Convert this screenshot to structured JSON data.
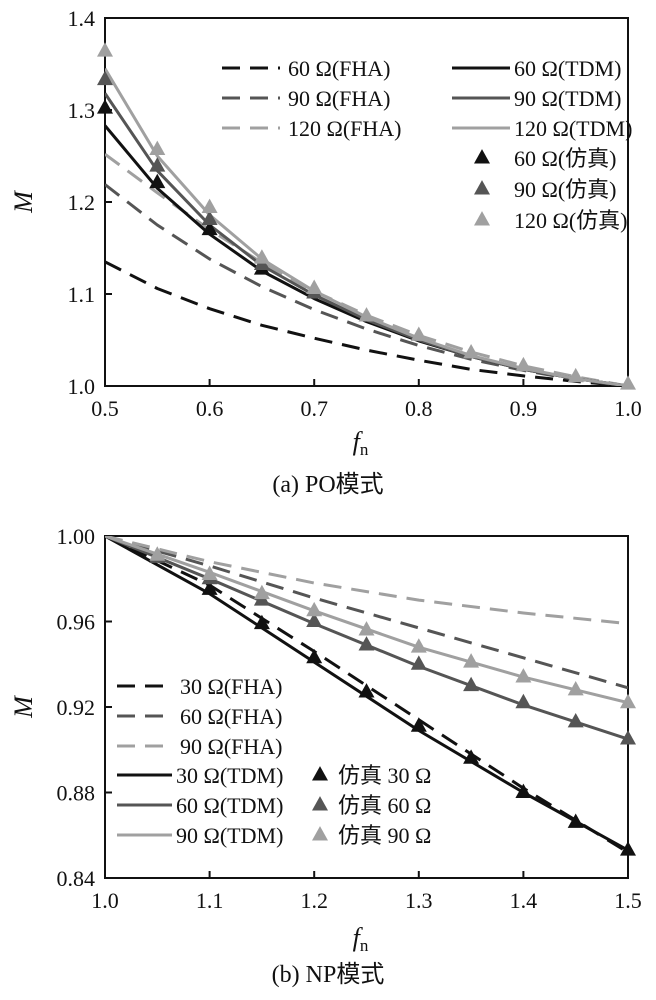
{
  "chart_data": [
    {
      "id": "po",
      "type": "line",
      "caption": "(a)  PO模式",
      "ylabel": "M",
      "xlabel_main": "f",
      "xlabel_sub": "n",
      "xlim": [
        0.5,
        1.0
      ],
      "ylim": [
        1.0,
        1.4
      ],
      "xticks": [
        0.5,
        0.6,
        0.7,
        0.8,
        0.9,
        1.0
      ],
      "xtick_labels": [
        "0.5",
        "0.6",
        "0.7",
        "0.8",
        "0.9",
        "1.0"
      ],
      "yticks": [
        1.0,
        1.1,
        1.2,
        1.3,
        1.4
      ],
      "ytick_labels": [
        "1.0",
        "1.1",
        "1.2",
        "1.3",
        "1.4"
      ],
      "legend_position": "top-right",
      "series": [
        {
          "name": "60 Ω(FHA)",
          "kind": "line",
          "dash": "dashed",
          "color": "#111111",
          "x": [
            0.5,
            0.55,
            0.6,
            0.65,
            0.7,
            0.75,
            0.8,
            0.85,
            0.9,
            0.95,
            1.0
          ],
          "y": [
            1.135,
            1.106,
            1.084,
            1.066,
            1.052,
            1.039,
            1.028,
            1.018,
            1.011,
            1.005,
            1.0
          ]
        },
        {
          "name": "90 Ω(FHA)",
          "kind": "line",
          "dash": "dashed",
          "color": "#555555",
          "x": [
            0.5,
            0.55,
            0.6,
            0.65,
            0.7,
            0.75,
            0.8,
            0.85,
            0.9,
            0.95,
            1.0
          ],
          "y": [
            1.219,
            1.175,
            1.138,
            1.108,
            1.083,
            1.062,
            1.044,
            1.029,
            1.017,
            1.007,
            1.0
          ]
        },
        {
          "name": "120 Ω(FHA)",
          "kind": "line",
          "dash": "dashed",
          "color": "#a0a0a0",
          "x": [
            0.5,
            0.55,
            0.6,
            0.65,
            0.7,
            0.75,
            0.8,
            0.85,
            0.9,
            0.95,
            1.0
          ],
          "y": [
            1.252,
            1.21,
            1.17,
            1.134,
            1.103,
            1.077,
            1.055,
            1.037,
            1.022,
            1.01,
            1.0
          ]
        },
        {
          "name": "60 Ω(TDM)",
          "kind": "line",
          "dash": "solid",
          "color": "#111111",
          "x": [
            0.5,
            0.55,
            0.6,
            0.65,
            0.7,
            0.75,
            0.8,
            0.85,
            0.9,
            0.95,
            1.0
          ],
          "y": [
            1.283,
            1.215,
            1.165,
            1.125,
            1.095,
            1.07,
            1.049,
            1.032,
            1.018,
            1.008,
            1.0
          ]
        },
        {
          "name": "90 Ω(TDM)",
          "kind": "line",
          "dash": "solid",
          "color": "#555555",
          "x": [
            0.5,
            0.55,
            0.6,
            0.65,
            0.7,
            0.75,
            0.8,
            0.85,
            0.9,
            0.95,
            1.0
          ],
          "y": [
            1.318,
            1.234,
            1.175,
            1.131,
            1.099,
            1.072,
            1.05,
            1.032,
            1.018,
            1.008,
            1.0
          ]
        },
        {
          "name": "120 Ω(TDM)",
          "kind": "line",
          "dash": "solid",
          "color": "#a0a0a0",
          "x": [
            0.5,
            0.55,
            0.6,
            0.65,
            0.7,
            0.75,
            0.8,
            0.85,
            0.9,
            0.95,
            1.0
          ],
          "y": [
            1.345,
            1.25,
            1.186,
            1.138,
            1.103,
            1.075,
            1.052,
            1.033,
            1.019,
            1.008,
            1.0
          ]
        },
        {
          "name": "60 Ω(仿真)",
          "kind": "marker",
          "color": "#111111",
          "x": [
            0.5,
            0.55,
            0.6,
            0.65
          ],
          "y": [
            1.302,
            1.221,
            1.17,
            1.127
          ]
        },
        {
          "name": "90 Ω(仿真)",
          "kind": "marker",
          "color": "#555555",
          "x": [
            0.5,
            0.55,
            0.6,
            0.65,
            0.7
          ],
          "y": [
            1.333,
            1.239,
            1.181,
            1.132,
            1.101
          ]
        },
        {
          "name": "120 Ω(仿真)",
          "kind": "marker",
          "color": "#a0a0a0",
          "x": [
            0.5,
            0.55,
            0.6,
            0.65,
            0.7,
            0.75,
            0.8,
            0.85,
            0.9,
            0.95,
            1.0
          ],
          "y": [
            1.364,
            1.257,
            1.194,
            1.139,
            1.106,
            1.076,
            1.055,
            1.036,
            1.022,
            1.01,
            1.002
          ]
        }
      ],
      "legend_rows": [
        {
          "left": "60 Ω(FHA)",
          "right": "60 Ω(TDM)",
          "color": "#111111"
        },
        {
          "left": "90 Ω(FHA)",
          "right": "90 Ω(TDM)",
          "color": "#555555"
        },
        {
          "left": "120 Ω(FHA)",
          "right": "120 Ω(TDM)",
          "color": "#a0a0a0"
        }
      ],
      "legend_markers": [
        {
          "label": "60 Ω(仿真)",
          "color": "#111111"
        },
        {
          "label": "90 Ω(仿真)",
          "color": "#555555"
        },
        {
          "label": "120 Ω(仿真)",
          "color": "#a0a0a0"
        }
      ]
    },
    {
      "id": "np",
      "type": "line",
      "caption": "(b)  NP模式",
      "ylabel": "M",
      "xlabel_main": "f",
      "xlabel_sub": "n",
      "xlim": [
        1.0,
        1.5
      ],
      "ylim": [
        0.84,
        1.0
      ],
      "xticks": [
        1.0,
        1.1,
        1.2,
        1.3,
        1.4,
        1.5
      ],
      "xtick_labels": [
        "1.0",
        "1.1",
        "1.2",
        "1.3",
        "1.4",
        "1.5"
      ],
      "yticks": [
        0.84,
        0.88,
        0.92,
        0.96,
        1.0
      ],
      "ytick_labels": [
        "0.84",
        "0.88",
        "0.92",
        "0.96",
        "1.00"
      ],
      "legend_position": "bottom-left",
      "series": [
        {
          "name": "30 Ω(FHA)",
          "kind": "line",
          "dash": "dashed",
          "color": "#111111",
          "x": [
            1.0,
            1.1,
            1.2,
            1.3,
            1.4,
            1.5
          ],
          "y": [
            1.0,
            0.977,
            0.946,
            0.914,
            0.882,
            0.852
          ]
        },
        {
          "name": "60 Ω(FHA)",
          "kind": "line",
          "dash": "dashed",
          "color": "#555555",
          "x": [
            1.0,
            1.1,
            1.2,
            1.3,
            1.4,
            1.5
          ],
          "y": [
            1.0,
            0.986,
            0.971,
            0.957,
            0.943,
            0.929
          ]
        },
        {
          "name": "90 Ω(FHA)",
          "kind": "line",
          "dash": "dashed",
          "color": "#a0a0a0",
          "x": [
            1.0,
            1.1,
            1.2,
            1.3,
            1.4,
            1.5
          ],
          "y": [
            1.0,
            0.988,
            0.978,
            0.97,
            0.964,
            0.959
          ]
        },
        {
          "name": "30 Ω(TDM)",
          "kind": "line",
          "dash": "solid",
          "color": "#111111",
          "x": [
            1.0,
            1.1,
            1.2,
            1.3,
            1.4,
            1.5
          ],
          "y": [
            1.0,
            0.973,
            0.941,
            0.909,
            0.88,
            0.853
          ]
        },
        {
          "name": "60 Ω(TDM)",
          "kind": "line",
          "dash": "solid",
          "color": "#555555",
          "x": [
            1.0,
            1.1,
            1.2,
            1.3,
            1.4,
            1.5
          ],
          "y": [
            1.0,
            0.98,
            0.959,
            0.939,
            0.921,
            0.905
          ]
        },
        {
          "name": "90 Ω(TDM)",
          "kind": "line",
          "dash": "solid",
          "color": "#a0a0a0",
          "x": [
            1.0,
            1.1,
            1.2,
            1.3,
            1.4,
            1.5
          ],
          "y": [
            1.0,
            0.983,
            0.965,
            0.948,
            0.934,
            0.922
          ]
        },
        {
          "name": "仿真 30 Ω",
          "kind": "marker",
          "color": "#111111",
          "x": [
            1.1,
            1.15,
            1.2,
            1.25,
            1.3,
            1.35,
            1.4,
            1.45,
            1.5
          ],
          "y": [
            0.975,
            0.959,
            0.943,
            0.927,
            0.911,
            0.896,
            0.88,
            0.866,
            0.853
          ]
        },
        {
          "name": "仿真 60 Ω",
          "kind": "marker",
          "color": "#555555",
          "x": [
            1.05,
            1.1,
            1.15,
            1.2,
            1.25,
            1.3,
            1.35,
            1.4,
            1.45,
            1.5
          ],
          "y": [
            0.99,
            0.98,
            0.97,
            0.96,
            0.949,
            0.94,
            0.93,
            0.922,
            0.913,
            0.905
          ]
        },
        {
          "name": "仿真 90 Ω",
          "kind": "marker",
          "color": "#a0a0a0",
          "x": [
            1.05,
            1.1,
            1.15,
            1.2,
            1.25,
            1.3,
            1.35,
            1.4,
            1.45,
            1.5
          ],
          "y": [
            0.991,
            0.982,
            0.973,
            0.965,
            0.956,
            0.948,
            0.941,
            0.934,
            0.928,
            0.922
          ]
        }
      ],
      "legend_dashed": [
        {
          "label": "30 Ω(FHA)",
          "color": "#111111"
        },
        {
          "label": "60 Ω(FHA)",
          "color": "#555555"
        },
        {
          "label": "90 Ω(FHA)",
          "color": "#a0a0a0"
        }
      ],
      "legend_solid_marker": [
        {
          "label": "30 Ω(TDM)",
          "marker": "仿真 30 Ω",
          "color": "#111111"
        },
        {
          "label": "60 Ω(TDM)",
          "marker": "仿真 60 Ω",
          "color": "#555555"
        },
        {
          "label": "90 Ω(TDM)",
          "marker": "仿真 90 Ω",
          "color": "#a0a0a0"
        }
      ]
    }
  ]
}
